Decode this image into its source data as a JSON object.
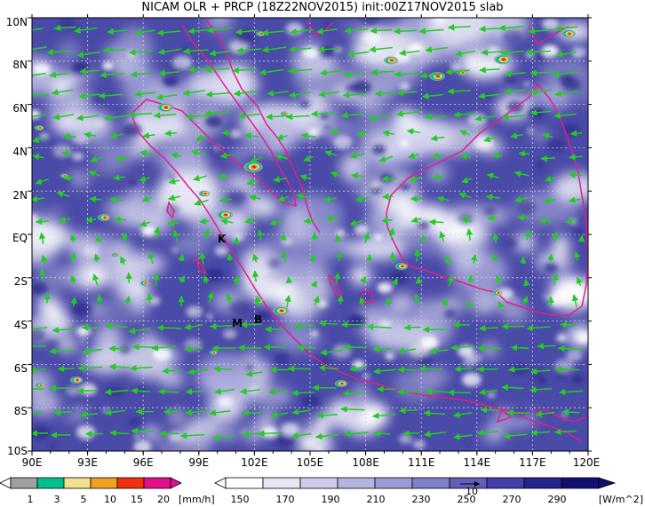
{
  "title": "NICAM OLR + PRCP (18Z22NOV2015) init:00Z17NOV2015 slab",
  "lat_labels": [
    "10N",
    "8N",
    "6N",
    "4N",
    "2N",
    "EQ",
    "2S",
    "4S",
    "6S",
    "8S",
    "10S"
  ],
  "lon_labels": [
    "90E",
    "93E",
    "96E",
    "99E",
    "102E",
    "105E",
    "108E",
    "111E",
    "114E",
    "117E",
    "120E"
  ],
  "place_labels": [
    "K",
    "M",
    "B"
  ],
  "precip_colorbar": {
    "ticks": [
      "1",
      "3",
      "5",
      "10",
      "15",
      "20"
    ],
    "unit": "[mm/h]",
    "colors": [
      "#a0a0a0",
      "#00c090",
      "#f0e090",
      "#f0a020",
      "#f03010",
      "#e0108a"
    ]
  },
  "olr_colorbar": {
    "ticks": [
      "150",
      "170",
      "190",
      "210",
      "230",
      "250",
      "270",
      "290"
    ],
    "unit": "[W/m^2]",
    "colors": [
      "#ffffff",
      "#e6e6f3",
      "#ccccec",
      "#b4b4e0",
      "#9a9ad4",
      "#8080c8",
      "#6060b8",
      "#4040a8",
      "#24248e",
      "#101070"
    ]
  },
  "vector_scale_label": "10",
  "colors": {
    "ocean": "#4a4aa8",
    "coastline": "#e0208a",
    "wind_vector": "#22cc22"
  }
}
